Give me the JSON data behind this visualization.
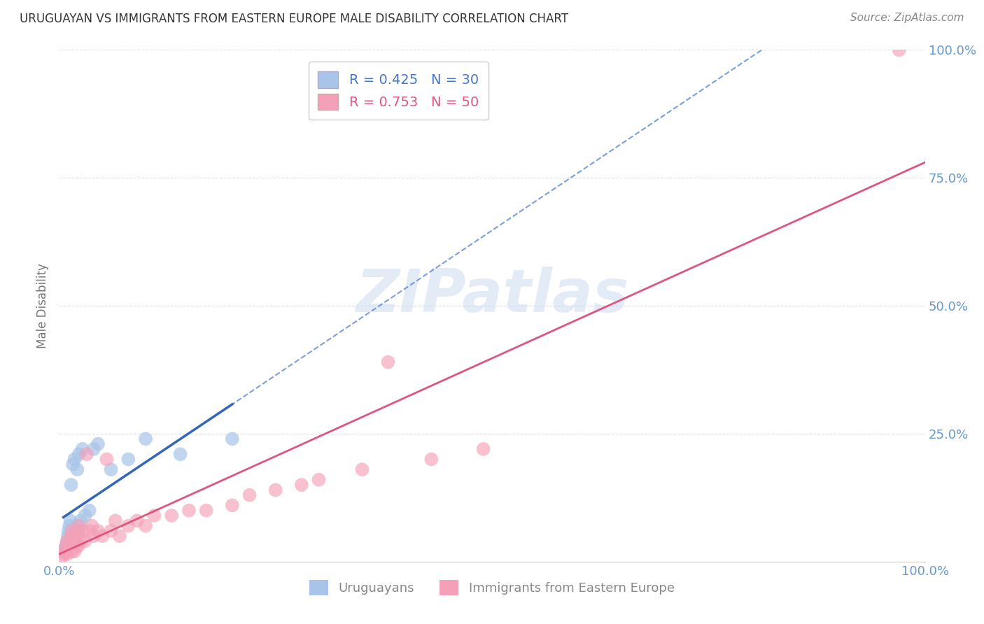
{
  "title": "URUGUAYAN VS IMMIGRANTS FROM EASTERN EUROPE MALE DISABILITY CORRELATION CHART",
  "source": "Source: ZipAtlas.com",
  "ylabel": "Male Disability",
  "series1_label": "Uruguayans",
  "series1_color": "#A8C4E8",
  "series1_R": 0.425,
  "series1_N": 30,
  "series1_line_color": "#4477CC",
  "series1_line_solid_color": "#3366BB",
  "series2_label": "Immigrants from Eastern Europe",
  "series2_color": "#F4A0B8",
  "series2_R": 0.753,
  "series2_N": 50,
  "series2_line_color": "#E05580",
  "watermark_text": "ZIPatlas",
  "watermark_color": "#C8D8F0",
  "axis_tick_color": "#6699CC",
  "grid_color": "#DDDDDD",
  "title_color": "#333333",
  "source_color": "#888888",
  "ylabel_color": "#777777",
  "background_color": "#FFFFFF",
  "uruguayan_x": [
    0.005,
    0.007,
    0.008,
    0.009,
    0.01,
    0.01,
    0.011,
    0.012,
    0.013,
    0.014,
    0.015,
    0.016,
    0.017,
    0.018,
    0.018,
    0.02,
    0.021,
    0.022,
    0.023,
    0.025,
    0.027,
    0.03,
    0.035,
    0.04,
    0.045,
    0.06,
    0.08,
    0.1,
    0.14,
    0.2
  ],
  "uruguayan_y": [
    0.02,
    0.025,
    0.03,
    0.035,
    0.04,
    0.05,
    0.06,
    0.07,
    0.08,
    0.15,
    0.03,
    0.19,
    0.05,
    0.06,
    0.2,
    0.07,
    0.18,
    0.06,
    0.21,
    0.08,
    0.22,
    0.09,
    0.1,
    0.22,
    0.23,
    0.18,
    0.2,
    0.24,
    0.21,
    0.24
  ],
  "immigrant_x": [
    0.004,
    0.006,
    0.007,
    0.008,
    0.009,
    0.01,
    0.011,
    0.012,
    0.013,
    0.014,
    0.015,
    0.015,
    0.016,
    0.017,
    0.018,
    0.019,
    0.02,
    0.021,
    0.022,
    0.023,
    0.025,
    0.027,
    0.03,
    0.032,
    0.035,
    0.038,
    0.04,
    0.045,
    0.05,
    0.055,
    0.06,
    0.065,
    0.07,
    0.08,
    0.09,
    0.1,
    0.11,
    0.13,
    0.15,
    0.17,
    0.2,
    0.22,
    0.25,
    0.28,
    0.3,
    0.35,
    0.38,
    0.43,
    0.49,
    0.97
  ],
  "immigrant_y": [
    0.01,
    0.015,
    0.02,
    0.03,
    0.04,
    0.015,
    0.02,
    0.03,
    0.025,
    0.05,
    0.02,
    0.06,
    0.03,
    0.04,
    0.02,
    0.06,
    0.03,
    0.05,
    0.03,
    0.07,
    0.04,
    0.06,
    0.04,
    0.21,
    0.06,
    0.07,
    0.05,
    0.06,
    0.05,
    0.2,
    0.06,
    0.08,
    0.05,
    0.07,
    0.08,
    0.07,
    0.09,
    0.09,
    0.1,
    0.1,
    0.11,
    0.13,
    0.14,
    0.15,
    0.16,
    0.18,
    0.39,
    0.2,
    0.22,
    1.0
  ],
  "xlim": [
    0.0,
    1.0
  ],
  "ylim": [
    0.0,
    1.0
  ],
  "ytick_pos": [
    0.0,
    0.25,
    0.5,
    0.75,
    1.0
  ],
  "ytick_labels": [
    "",
    "25.0%",
    "50.0%",
    "75.0%",
    "100.0%"
  ],
  "xtick_pos": [
    0.0,
    0.25,
    0.5,
    0.75,
    1.0
  ],
  "xtick_labels_show": [
    "0.0%",
    "",
    "",
    "",
    "100.0%"
  ]
}
